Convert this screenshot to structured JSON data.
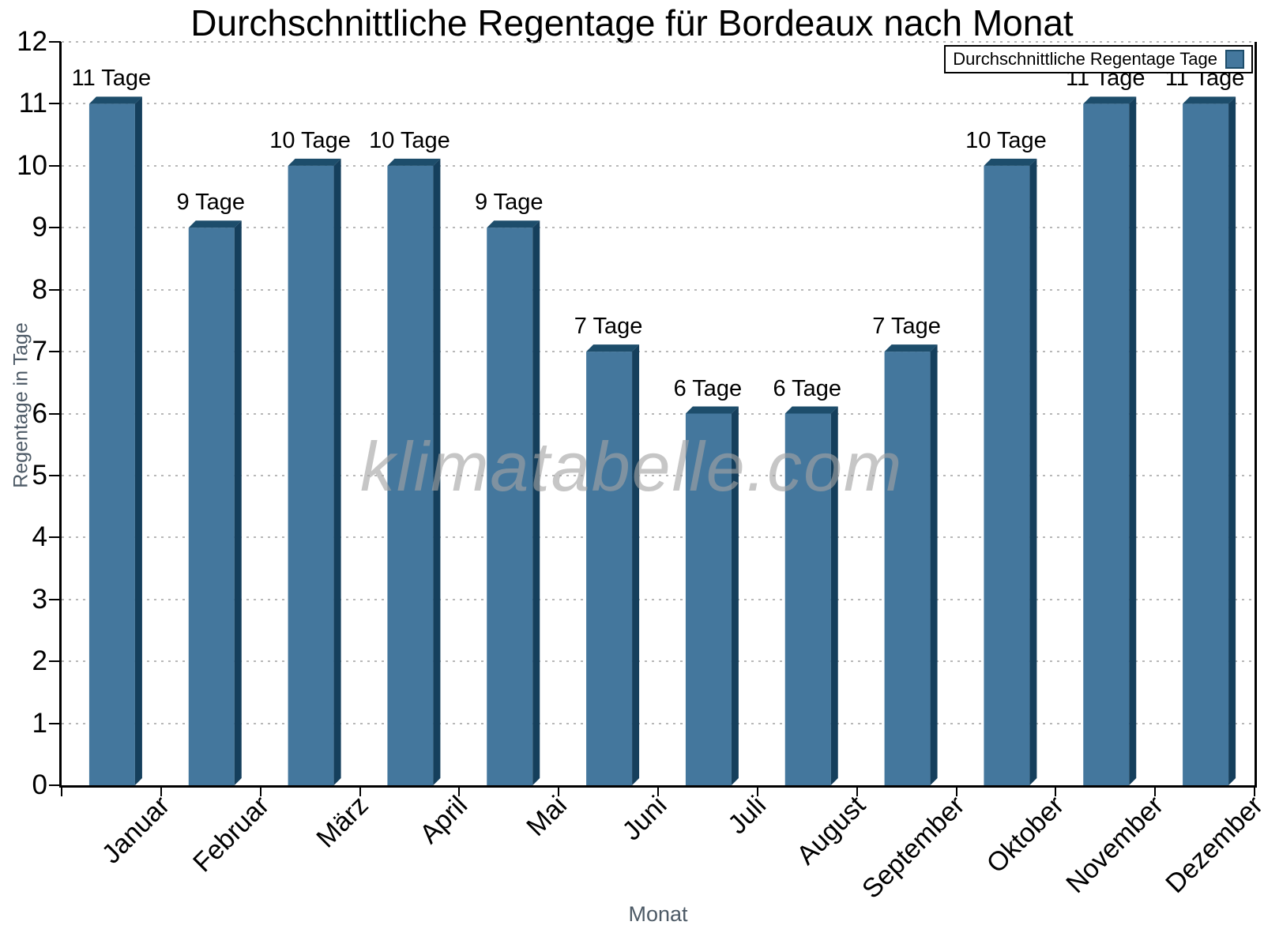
{
  "title": "Durchschnittliche Regentage für Bordeaux nach Monat",
  "legend": {
    "label": "Durchschnittliche Regentage Tage"
  },
  "watermark": "klimatabelle.com",
  "axes": {
    "x_label": "Monat",
    "y_label": "Regentage in Tage"
  },
  "colors": {
    "bar_face": "#44779d",
    "bar_top": "#1d4d6b",
    "bar_side": "#153f5c",
    "grid": "#b8b8b8",
    "axis": "#000000",
    "axis_title_gray": "#4d5a66",
    "watermark_gray": "rgba(163,163,163,0.62)"
  },
  "chart_data": {
    "type": "bar",
    "title": "Durchschnittliche Regentage für Bordeaux nach Monat",
    "xlabel": "Monat",
    "ylabel": "Regentage in Tage",
    "categories": [
      "Januar",
      "Februar",
      "März",
      "April",
      "Mai",
      "Juni",
      "Juli",
      "August",
      "September",
      "Oktober",
      "November",
      "Dezember"
    ],
    "values": [
      11,
      9,
      10,
      10,
      9,
      7,
      6,
      6,
      7,
      10,
      11,
      11
    ],
    "bar_labels": [
      "11 Tage",
      "9 Tage",
      "10 Tage",
      "10 Tage",
      "9 Tage",
      "7 Tage",
      "6 Tage",
      "6 Tage",
      "7 Tage",
      "10 Tage",
      "11 Tage",
      "11 Tage"
    ],
    "series_name": "Durchschnittliche Regentage Tage",
    "ylim": [
      0,
      12
    ],
    "yticks": [
      0,
      1,
      2,
      3,
      4,
      5,
      6,
      7,
      8,
      9,
      10,
      11,
      12
    ],
    "grid": "horizontal-dotted",
    "legend_position": "top-right",
    "bar_style": "3d-bevel"
  }
}
